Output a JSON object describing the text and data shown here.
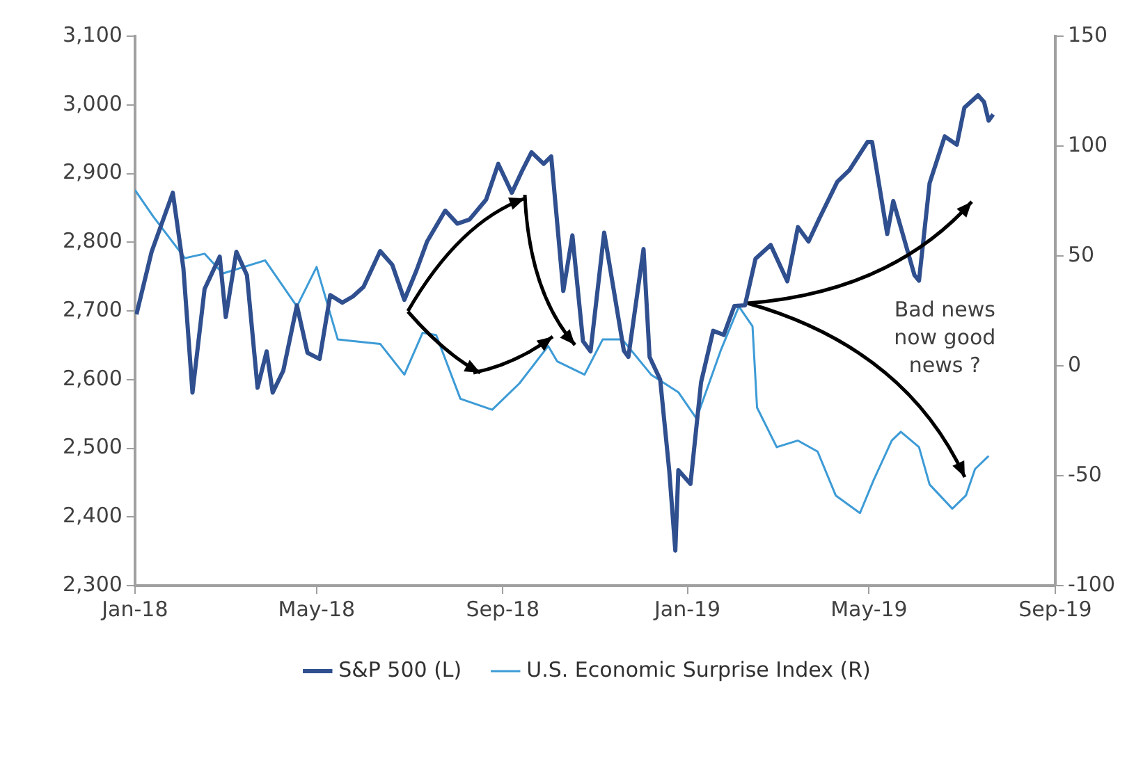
{
  "chart_data": {
    "type": "line",
    "legend": "bottom",
    "grid": false,
    "marker": "none",
    "line_style": "solid",
    "annotations": [
      "Bad news now good news ?"
    ],
    "xlim": [
      "2018-01-01",
      "2019-09-01"
    ],
    "xticks": [
      {
        "value": "2018-01-01",
        "label": "Jan-18"
      },
      {
        "value": "2018-05-01",
        "label": "May-18"
      },
      {
        "value": "2018-09-01",
        "label": "Sep-18"
      },
      {
        "value": "2019-01-01",
        "label": "Jan-19"
      },
      {
        "value": "2019-05-01",
        "label": "May-19"
      },
      {
        "value": "2019-09-01",
        "label": "Sep-19"
      }
    ],
    "ylim": [
      2300,
      3100
    ],
    "yticks": [
      {
        "value": 2300,
        "label": "2,300"
      },
      {
        "value": 2400,
        "label": "2,400"
      },
      {
        "value": 2500,
        "label": "2,500"
      },
      {
        "value": 2600,
        "label": "2,600"
      },
      {
        "value": 2700,
        "label": "2,700"
      },
      {
        "value": 2800,
        "label": "2,800"
      },
      {
        "value": 2900,
        "label": "2,900"
      },
      {
        "value": 3000,
        "label": "3,000"
      },
      {
        "value": 3100,
        "label": "3,100"
      }
    ],
    "y2lim": [
      -100,
      150
    ],
    "y2ticks": [
      -100,
      -50,
      0,
      50,
      100,
      150
    ],
    "series": [
      {
        "name": "S&P 500 (L)",
        "color": "#2f4f8f",
        "x": [
          "2018-01-02",
          "2018-01-12",
          "2018-01-26",
          "2018-02-02",
          "2018-02-08",
          "2018-02-16",
          "2018-02-26",
          "2018-03-02",
          "2018-03-09",
          "2018-03-16",
          "2018-03-23",
          "2018-03-29",
          "2018-04-02",
          "2018-04-09",
          "2018-04-18",
          "2018-04-25",
          "2018-05-03",
          "2018-05-10",
          "2018-05-18",
          "2018-05-25",
          "2018-06-01",
          "2018-06-12",
          "2018-06-20",
          "2018-06-28",
          "2018-07-06",
          "2018-07-13",
          "2018-07-25",
          "2018-08-02",
          "2018-08-10",
          "2018-08-21",
          "2018-08-29",
          "2018-09-07",
          "2018-09-14",
          "2018-09-20",
          "2018-09-28",
          "2018-10-03",
          "2018-10-11",
          "2018-10-17",
          "2018-10-24",
          "2018-10-29",
          "2018-11-07",
          "2018-11-20",
          "2018-11-23",
          "2018-12-03",
          "2018-12-07",
          "2018-12-14",
          "2018-12-20",
          "2018-12-24",
          "2018-12-26",
          "2019-01-03",
          "2019-01-10",
          "2019-01-18",
          "2019-01-25",
          "2019-02-01",
          "2019-02-08",
          "2019-02-15",
          "2019-02-25",
          "2019-03-08",
          "2019-03-15",
          "2019-03-22",
          "2019-03-29",
          "2019-04-10",
          "2019-04-18",
          "2019-04-30",
          "2019-05-03",
          "2019-05-13",
          "2019-05-17",
          "2019-05-31",
          "2019-06-03",
          "2019-06-10",
          "2019-06-20",
          "2019-06-28",
          "2019-07-03",
          "2019-07-12",
          "2019-07-16",
          "2019-07-19",
          "2019-07-22"
        ],
        "values": [
          2695,
          2786,
          2872,
          2762,
          2581,
          2732,
          2779,
          2691,
          2786,
          2752,
          2588,
          2641,
          2581,
          2613,
          2708,
          2639,
          2630,
          2723,
          2712,
          2721,
          2735,
          2787,
          2767,
          2716,
          2759,
          2801,
          2846,
          2827,
          2833,
          2862,
          2914,
          2872,
          2905,
          2931,
          2914,
          2925,
          2729,
          2810,
          2656,
          2641,
          2814,
          2642,
          2633,
          2790,
          2633,
          2600,
          2467,
          2351,
          2468,
          2448,
          2596,
          2671,
          2665,
          2707,
          2708,
          2776,
          2796,
          2743,
          2822,
          2801,
          2834,
          2888,
          2905,
          2946,
          2946,
          2812,
          2860,
          2752,
          2744,
          2886,
          2954,
          2942,
          2996,
          3014,
          3004,
          2977,
          2986
        ]
      },
      {
        "name": "U.S. Economic Surprise Index (R)",
        "color": "#3d9bd6",
        "axis": "y2",
        "x": [
          "2018-01-01",
          "2018-01-13",
          "2018-02-03",
          "2018-02-16",
          "2018-02-28",
          "2018-03-28",
          "2018-04-18",
          "2018-05-01",
          "2018-05-15",
          "2018-06-12",
          "2018-06-28",
          "2018-07-10",
          "2018-07-19",
          "2018-08-04",
          "2018-08-25",
          "2018-09-12",
          "2018-10-01",
          "2018-10-07",
          "2018-10-25",
          "2018-11-06",
          "2018-11-19",
          "2018-12-08",
          "2018-12-26",
          "2019-01-07",
          "2019-01-23",
          "2019-02-04",
          "2019-02-13",
          "2019-02-16",
          "2019-03-01",
          "2019-03-15",
          "2019-03-28",
          "2019-04-09",
          "2019-04-25",
          "2019-05-04",
          "2019-05-16",
          "2019-05-22",
          "2019-06-03",
          "2019-06-10",
          "2019-06-25",
          "2019-07-04",
          "2019-07-10",
          "2019-07-19"
        ],
        "values": [
          80,
          68,
          49,
          51,
          42,
          48,
          27,
          45,
          12,
          10,
          -4,
          15,
          14,
          -15,
          -20,
          -8,
          9,
          2,
          -4,
          12,
          12,
          -4,
          -12,
          -24,
          7,
          27,
          18,
          -19,
          -37,
          -34,
          -39,
          -59,
          -67,
          -52,
          -34,
          -30,
          -37,
          -54,
          -65,
          -59,
          -47,
          -41
        ]
      }
    ]
  }
}
